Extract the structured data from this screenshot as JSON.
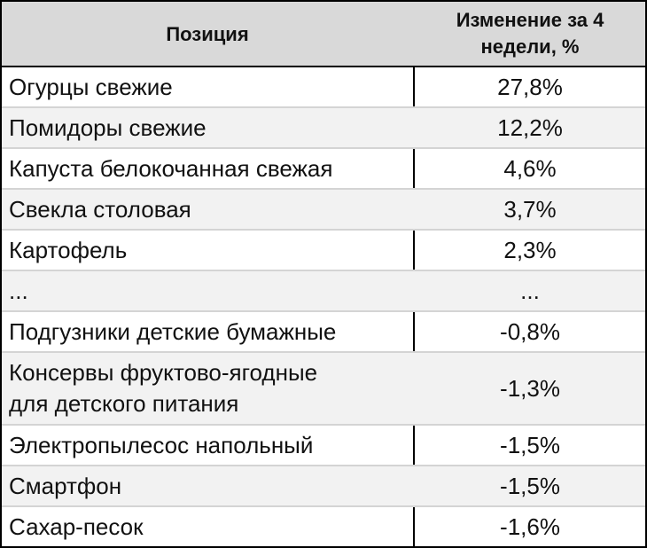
{
  "header": {
    "col1": "Позиция",
    "col2_line1": "Изменение за 4",
    "col2_line2": "недели, %"
  },
  "rows": [
    {
      "name": "Огурцы свежие",
      "value": "27,8%"
    },
    {
      "name": "Помидоры свежие",
      "value": "12,2%"
    },
    {
      "name": "Капуста белокочанная свежая",
      "value": "4,6%"
    },
    {
      "name": "Свекла столовая",
      "value": "3,7%"
    },
    {
      "name": "Картофель",
      "value": "2,3%"
    },
    {
      "name": "...",
      "value": "..."
    },
    {
      "name": "Подгузники детские бумажные",
      "value": "-0,8%"
    },
    {
      "name_line1": "Консервы фруктово-ягодные",
      "name_line2": "для детского питания",
      "value": "-1,3%"
    },
    {
      "name": "Электропылесос напольный",
      "value": "-1,5%"
    },
    {
      "name": "Смартфон",
      "value": "-1,5%"
    },
    {
      "name": "Сахар-песок",
      "value": "-1,6%"
    }
  ]
}
